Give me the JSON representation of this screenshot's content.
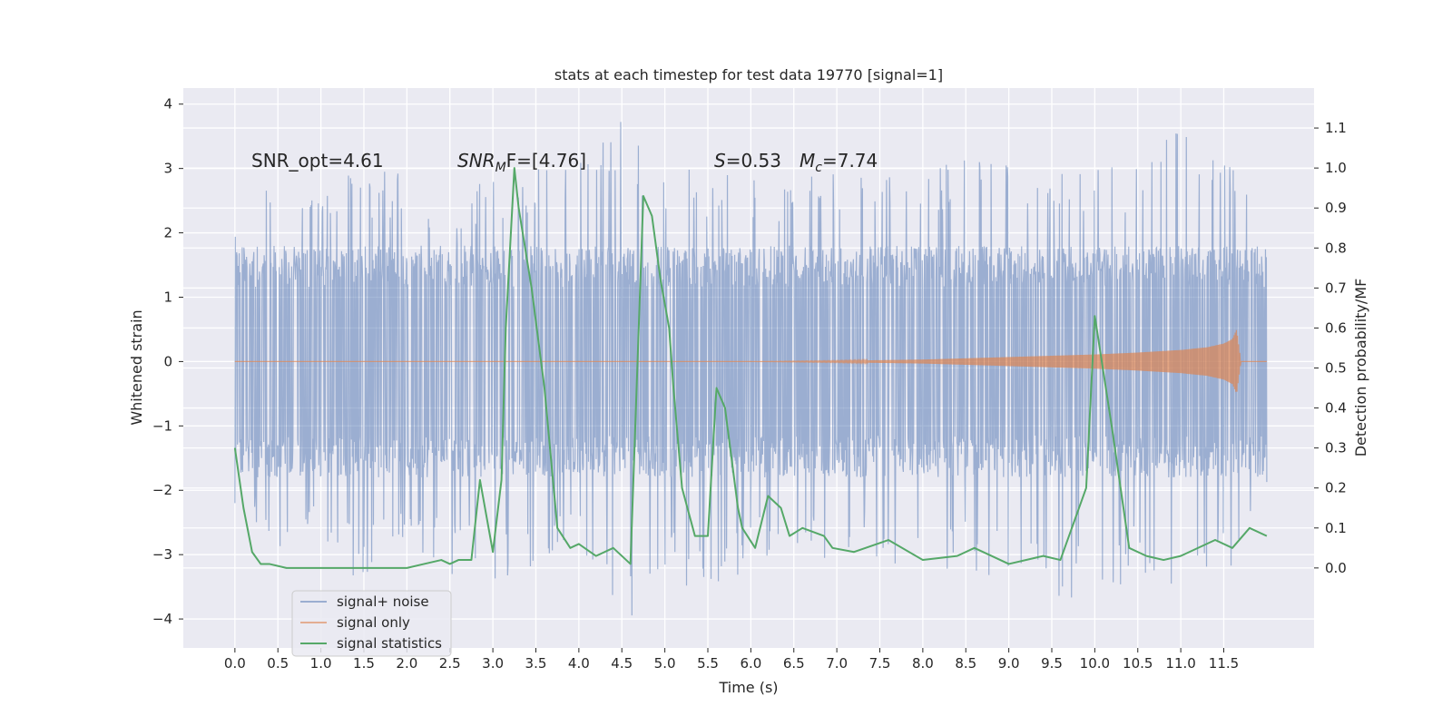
{
  "chart_data": {
    "type": "line",
    "title": "stats at each timestep for test data 19770 [signal=1]",
    "xlabel": "Time (s)",
    "ylabel": "Whitened strain",
    "ylabel_right": "Detection probability/MF",
    "xlim": [
      -0.6,
      12.55
    ],
    "ylim": [
      -4.45,
      4.25
    ],
    "ylim_right": [
      -0.2,
      1.2
    ],
    "x_ticks": [
      "0.0",
      "0.5",
      "1.0",
      "1.5",
      "2.0",
      "2.5",
      "3.0",
      "3.5",
      "4.0",
      "4.5",
      "5.0",
      "5.5",
      "6.0",
      "6.5",
      "7.0",
      "7.5",
      "8.0",
      "8.5",
      "9.0",
      "9.5",
      "10.0",
      "10.5",
      "11.0",
      "11.5"
    ],
    "y_ticks": [
      "4",
      "3",
      "2",
      "1",
      "0",
      "−1",
      "−2",
      "−3",
      "−4"
    ],
    "y_right_ticks": [
      "1.1",
      "1.0",
      "0.9",
      "0.8",
      "0.7",
      "0.6",
      "0.5",
      "0.4",
      "0.3",
      "0.2",
      "0.1",
      "0.0"
    ],
    "grid": true,
    "legend_position": "lower-left",
    "annotations": {
      "snr_opt": "SNR_opt=4.61",
      "snr_mf_prefix": "SNR",
      "snr_mf_sub": "M",
      "snr_mf_suffix": "F=[4.76]",
      "s_prefix": "S",
      "s_value": "=0.53",
      "mc_prefix": "M",
      "mc_sub": "c",
      "mc_value": "=7.74"
    },
    "series": [
      {
        "name": "signal+ noise",
        "color": "#4c72b0",
        "axis": "left",
        "x_range": [
          0.0,
          12.0
        ],
        "envelope": {
          "max_x": [
            0.0,
            0.5,
            1.0,
            1.5,
            2.0,
            2.5,
            3.0,
            3.5,
            4.0,
            4.4,
            5.0,
            5.5,
            6.0,
            6.5,
            7.0,
            7.5,
            8.0,
            8.5,
            9.0,
            9.5,
            10.0,
            10.5,
            11.0,
            11.5,
            12.0
          ],
          "max_y": [
            2.5,
            3.0,
            2.8,
            3.0,
            2.9,
            2.6,
            2.9,
            3.0,
            3.3,
            3.9,
            3.0,
            3.0,
            3.0,
            2.8,
            3.0,
            3.2,
            3.0,
            3.2,
            3.1,
            3.2,
            3.0,
            3.1,
            3.7,
            3.3,
            2.7
          ],
          "min_x": [
            0.0,
            0.5,
            1.0,
            1.5,
            2.0,
            2.5,
            3.0,
            3.5,
            4.0,
            4.6,
            5.0,
            5.5,
            6.0,
            6.5,
            7.0,
            7.5,
            8.0,
            8.5,
            9.0,
            9.5,
            10.0,
            10.5,
            11.0,
            11.5,
            12.0
          ],
          "min_y": [
            -2.4,
            -3.0,
            -2.9,
            -3.5,
            -2.9,
            -3.3,
            -3.5,
            -3.2,
            -3.0,
            -4.0,
            -3.3,
            -3.8,
            -3.1,
            -3.0,
            -3.1,
            -3.1,
            -3.6,
            -3.3,
            -3.4,
            -3.8,
            -3.8,
            -3.3,
            -3.7,
            -3.4,
            -2.4
          ]
        }
      },
      {
        "name": "signal only",
        "color": "#dd8452",
        "axis": "left",
        "x": [
          0.0,
          6.0,
          7.0,
          8.0,
          8.5,
          9.0,
          9.5,
          10.0,
          10.5,
          11.0,
          11.3,
          11.5,
          11.6,
          11.65,
          11.7,
          12.0
        ],
        "amplitude": [
          0.0,
          0.0,
          0.01,
          0.03,
          0.05,
          0.07,
          0.09,
          0.11,
          0.14,
          0.18,
          0.22,
          0.28,
          0.35,
          0.5,
          0.0,
          0.0
        ]
      },
      {
        "name": "signal statistics",
        "color": "#55a868",
        "axis": "right",
        "x": [
          0.0,
          0.1,
          0.2,
          0.3,
          0.4,
          0.6,
          0.8,
          1.0,
          1.2,
          1.4,
          1.6,
          1.8,
          2.0,
          2.2,
          2.4,
          2.5,
          2.6,
          2.75,
          2.85,
          3.0,
          3.1,
          3.15,
          3.25,
          3.3,
          3.45,
          3.6,
          3.75,
          3.9,
          4.0,
          4.2,
          4.4,
          4.6,
          4.75,
          4.85,
          4.95,
          5.05,
          5.1,
          5.2,
          5.35,
          5.5,
          5.6,
          5.7,
          5.85,
          5.9,
          6.05,
          6.2,
          6.35,
          6.45,
          6.6,
          6.85,
          6.95,
          7.2,
          7.6,
          8.0,
          8.4,
          8.6,
          9.0,
          9.4,
          9.6,
          9.9,
          10.0,
          10.2,
          10.4,
          10.6,
          10.8,
          11.0,
          11.4,
          11.6,
          11.8,
          12.0
        ],
        "y": [
          0.3,
          0.15,
          0.04,
          0.01,
          0.01,
          0.0,
          0.0,
          0.0,
          0.0,
          0.0,
          0.0,
          0.0,
          0.0,
          0.01,
          0.02,
          0.01,
          0.02,
          0.02,
          0.22,
          0.04,
          0.22,
          0.6,
          1.0,
          0.9,
          0.7,
          0.45,
          0.1,
          0.05,
          0.06,
          0.03,
          0.05,
          0.01,
          0.93,
          0.88,
          0.72,
          0.6,
          0.45,
          0.2,
          0.08,
          0.08,
          0.45,
          0.4,
          0.15,
          0.1,
          0.05,
          0.18,
          0.15,
          0.08,
          0.1,
          0.08,
          0.05,
          0.04,
          0.07,
          0.02,
          0.03,
          0.05,
          0.01,
          0.03,
          0.02,
          0.2,
          0.63,
          0.35,
          0.05,
          0.03,
          0.02,
          0.03,
          0.07,
          0.05,
          0.1,
          0.08
        ]
      }
    ]
  }
}
